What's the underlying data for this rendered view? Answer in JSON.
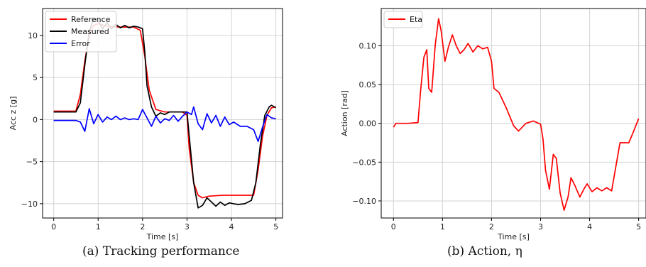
{
  "chart_data": [
    {
      "type": "line",
      "caption": "(a) Tracking performance",
      "title": "",
      "xlabel": "Time [s]",
      "ylabel": "Acc z [g]",
      "xlim": [
        -0.25,
        5.15
      ],
      "ylim": [
        -11.7,
        13.2
      ],
      "xticks": [
        0,
        1,
        2,
        3,
        4,
        5
      ],
      "xtick_labels": [
        "0",
        "1",
        "2",
        "3",
        "4",
        "5"
      ],
      "yticks": [
        -10,
        -5,
        0,
        5,
        10
      ],
      "ytick_labels": [
        "−10",
        "−5",
        "0",
        "5",
        "10"
      ],
      "grid": true,
      "legend_position": "top-left",
      "series": [
        {
          "name": "Reference",
          "color": "#ff0000",
          "x": [
            0,
            0.5,
            0.6,
            0.7,
            0.8,
            0.9,
            1.0,
            1.2,
            1.5,
            1.8,
            1.95,
            2.05,
            2.15,
            2.3,
            2.5,
            2.9,
            3.0,
            3.05,
            3.15,
            3.25,
            3.35,
            3.5,
            3.8,
            4.2,
            4.5,
            4.6,
            4.7,
            4.8,
            4.9,
            5.0
          ],
          "y": [
            1.0,
            1.0,
            3.0,
            7.0,
            10.0,
            11.2,
            11.4,
            11.1,
            11.0,
            11.0,
            10.6,
            7.5,
            3.5,
            1.2,
            0.9,
            0.9,
            0.5,
            -3.5,
            -7.5,
            -9.0,
            -9.3,
            -9.1,
            -9.0,
            -9.0,
            -9.0,
            -6.0,
            -2.0,
            0.5,
            1.4,
            1.5
          ]
        },
        {
          "name": "Measured",
          "color": "#000000",
          "x": [
            0,
            0.5,
            0.6,
            0.7,
            0.8,
            0.9,
            1.0,
            1.1,
            1.2,
            1.3,
            1.4,
            1.5,
            1.6,
            1.7,
            1.8,
            1.9,
            2.0,
            2.05,
            2.1,
            2.2,
            2.3,
            2.4,
            2.5,
            2.6,
            2.8,
            3.0,
            3.05,
            3.15,
            3.25,
            3.35,
            3.45,
            3.55,
            3.65,
            3.75,
            3.85,
            3.95,
            4.05,
            4.15,
            4.3,
            4.45,
            4.55,
            4.65,
            4.75,
            4.85,
            4.9,
            5.0
          ],
          "y": [
            0.9,
            0.9,
            2.0,
            6.5,
            10.5,
            12.0,
            11.8,
            10.8,
            11.5,
            10.8,
            11.3,
            10.9,
            11.2,
            10.9,
            11.1,
            11.0,
            10.8,
            8.0,
            4.0,
            1.5,
            0.4,
            0.8,
            0.6,
            0.9,
            0.9,
            0.9,
            -2.0,
            -7.5,
            -10.5,
            -10.2,
            -9.3,
            -9.8,
            -10.3,
            -9.8,
            -10.2,
            -9.9,
            -10.0,
            -10.1,
            -10.0,
            -9.6,
            -7.5,
            -3.0,
            0.5,
            1.5,
            1.7,
            1.4
          ]
        },
        {
          "name": "Error",
          "color": "#0000ff",
          "x": [
            0,
            0.5,
            0.6,
            0.7,
            0.8,
            0.9,
            1.0,
            1.1,
            1.2,
            1.3,
            1.4,
            1.5,
            1.6,
            1.7,
            1.8,
            1.9,
            2.0,
            2.1,
            2.2,
            2.3,
            2.4,
            2.5,
            2.6,
            2.7,
            2.8,
            2.9,
            3.0,
            3.1,
            3.15,
            3.25,
            3.35,
            3.45,
            3.55,
            3.65,
            3.75,
            3.85,
            3.95,
            4.05,
            4.2,
            4.35,
            4.5,
            4.6,
            4.7,
            4.8,
            4.9,
            5.0
          ],
          "y": [
            -0.1,
            -0.1,
            -0.3,
            -1.4,
            1.3,
            -0.5,
            0.6,
            -0.3,
            0.3,
            0.0,
            0.4,
            0.0,
            0.2,
            0.0,
            0.1,
            0.0,
            1.2,
            0.2,
            -0.8,
            0.4,
            -0.4,
            0.1,
            -0.1,
            0.5,
            -0.2,
            0.4,
            0.9,
            0.6,
            1.5,
            -0.5,
            -1.2,
            0.7,
            -0.4,
            0.5,
            -0.8,
            0.3,
            -0.6,
            -0.3,
            -0.8,
            -0.8,
            -1.2,
            -2.6,
            -0.9,
            0.6,
            0.2,
            0.1
          ]
        }
      ]
    },
    {
      "type": "line",
      "caption": "(b) Action, η",
      "title": "",
      "xlabel": "Time [s]",
      "ylabel": "Action [rad]",
      "xlim": [
        -0.25,
        5.15
      ],
      "ylim": [
        -0.122,
        0.148
      ],
      "xticks": [
        0,
        1,
        2,
        3,
        4,
        5
      ],
      "xtick_labels": [
        "0",
        "1",
        "2",
        "3",
        "4",
        "5"
      ],
      "yticks": [
        -0.1,
        -0.05,
        0.0,
        0.05,
        0.1
      ],
      "ytick_labels": [
        "−0.10",
        "−0.05",
        "0.00",
        "0.05",
        "0.10"
      ],
      "grid": true,
      "legend_position": "top-left",
      "series": [
        {
          "name": "Eta",
          "color": "#ff0000",
          "x": [
            0,
            0.05,
            0.3,
            0.5,
            0.55,
            0.62,
            0.68,
            0.72,
            0.78,
            0.85,
            0.92,
            0.97,
            1.05,
            1.12,
            1.2,
            1.28,
            1.36,
            1.44,
            1.52,
            1.62,
            1.72,
            1.82,
            1.92,
            2.0,
            2.05,
            2.15,
            2.3,
            2.45,
            2.55,
            2.7,
            2.85,
            3.0,
            3.05,
            3.1,
            3.18,
            3.26,
            3.32,
            3.4,
            3.48,
            3.56,
            3.62,
            3.7,
            3.8,
            3.88,
            3.95,
            4.05,
            4.15,
            4.25,
            4.35,
            4.45,
            4.55,
            4.62,
            4.7,
            4.8,
            4.9,
            5.0
          ],
          "y": [
            -0.005,
            0.0,
            0.0,
            0.001,
            0.04,
            0.085,
            0.095,
            0.045,
            0.04,
            0.1,
            0.135,
            0.12,
            0.08,
            0.098,
            0.114,
            0.1,
            0.09,
            0.095,
            0.103,
            0.092,
            0.1,
            0.096,
            0.098,
            0.08,
            0.045,
            0.04,
            0.02,
            -0.003,
            -0.01,
            0.0,
            0.003,
            -0.001,
            -0.02,
            -0.06,
            -0.085,
            -0.04,
            -0.045,
            -0.09,
            -0.112,
            -0.095,
            -0.07,
            -0.08,
            -0.095,
            -0.085,
            -0.078,
            -0.088,
            -0.083,
            -0.087,
            -0.083,
            -0.087,
            -0.05,
            -0.025,
            -0.025,
            -0.025,
            -0.01,
            0.006
          ]
        }
      ]
    }
  ]
}
